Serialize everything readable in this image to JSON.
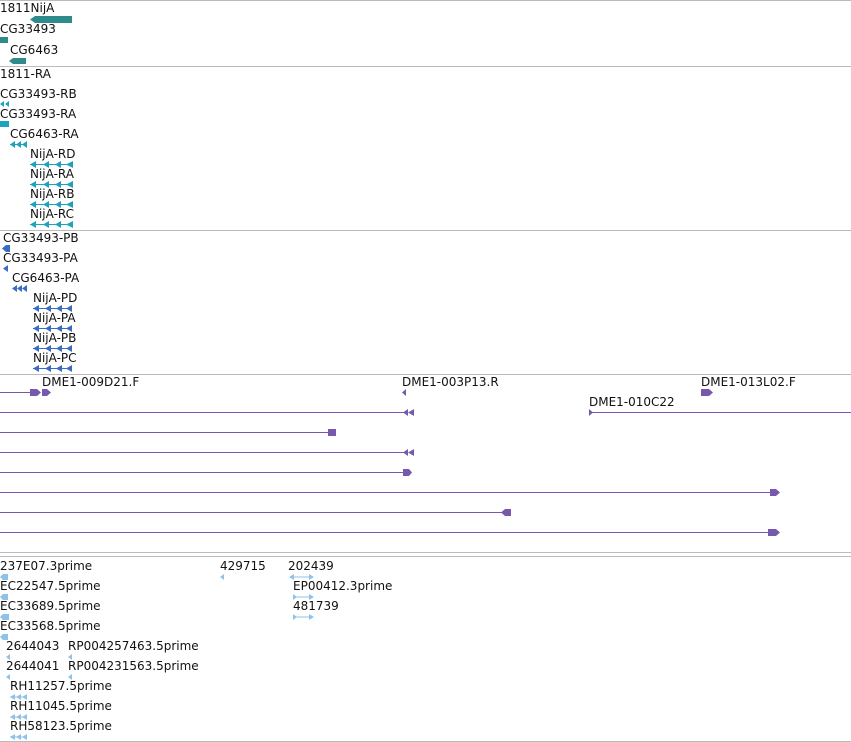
{
  "colors": {
    "background": "#ffffff",
    "divider": "#bbbbbb",
    "label": "#111111",
    "gene": "#2e8b8b",
    "transcript": "#1ea3be",
    "protein": "#3b6cc4",
    "clone": "#7659ad",
    "est": "#8dc3ea"
  },
  "tracks": {
    "genes": {
      "items": [
        {
          "label": "1811NijA"
        },
        {
          "label": "CG33493"
        },
        {
          "label": "CG6463"
        }
      ]
    },
    "transcripts": {
      "items": [
        {
          "label": "1811-RA"
        },
        {
          "label": "CG33493-RB"
        },
        {
          "label": "CG33493-RA"
        },
        {
          "label": "CG6463-RA"
        },
        {
          "label": "NijA-RD"
        },
        {
          "label": "NijA-RA"
        },
        {
          "label": "NijA-RB"
        },
        {
          "label": "NijA-RC"
        }
      ]
    },
    "proteins": {
      "items": [
        {
          "label": "CG33493-PB"
        },
        {
          "label": "CG33493-PA"
        },
        {
          "label": "CG6463-PA"
        },
        {
          "label": "NijA-PD"
        },
        {
          "label": "NijA-PA"
        },
        {
          "label": "NijA-PB"
        },
        {
          "label": "NijA-PC"
        }
      ]
    },
    "clones": {
      "items": [
        {
          "label": "DME1-009D21.F"
        },
        {
          "label": "DME1-003P13.R"
        },
        {
          "label": "DME1-013L02.F"
        },
        {
          "label": "DME1-010C22"
        }
      ]
    },
    "ests": {
      "items": [
        {
          "label": "237E07.3prime"
        },
        {
          "label": "429715"
        },
        {
          "label": "202439"
        },
        {
          "label": "EC22547.5prime"
        },
        {
          "label": "EP00412.3prime"
        },
        {
          "label": "EC33689.5prime"
        },
        {
          "label": "481739"
        },
        {
          "label": "EC33568.5prime"
        },
        {
          "label": "2644043"
        },
        {
          "label": "RP004257463.5prime"
        },
        {
          "label": "2644041"
        },
        {
          "label": "RP004231563.5prime"
        },
        {
          "label": "RH11257.5prime"
        },
        {
          "label": "RH11045.5prime"
        },
        {
          "label": "RH58123.5prime"
        }
      ]
    }
  }
}
